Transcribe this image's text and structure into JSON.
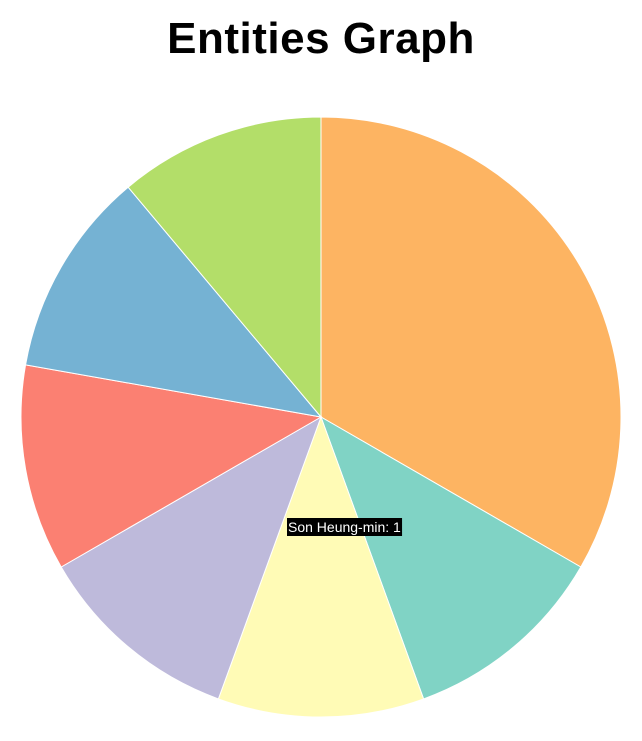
{
  "title": "Entities Graph",
  "chart_data": {
    "type": "pie",
    "title": "Entities Graph",
    "slices": [
      {
        "value": 3,
        "color": "#fdb462"
      },
      {
        "value": 1,
        "color": "#80d3c5"
      },
      {
        "value": 1,
        "color": "#fffbb6"
      },
      {
        "value": 1,
        "color": "#bebadb"
      },
      {
        "value": 1,
        "color": "#fb8072"
      },
      {
        "value": 1,
        "color": "#75b2d3"
      },
      {
        "value": 1,
        "color": "#b3de69"
      }
    ],
    "tooltip": {
      "text": "Son Heung-min: 1",
      "slice_index": 2
    }
  }
}
